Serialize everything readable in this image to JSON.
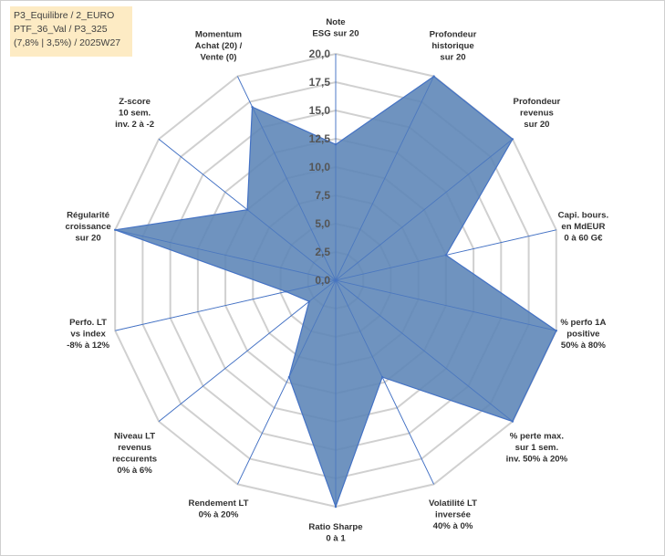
{
  "info_box": {
    "line1": "P3_Equilibre / 2_EURO",
    "line2": "PTF_36_Val / P3_325",
    "line3": "(7,8% | 3,5%) / 2025W27"
  },
  "colors": {
    "fill": "#5b84b6",
    "stroke": "#4472c4",
    "grid": "#d0d0d0",
    "spoke": "#4472c4"
  },
  "chart_data": {
    "type": "radar",
    "rmax": 20,
    "rmin": 0,
    "ticks": [
      "0,0",
      "2,5",
      "5,0",
      "7,5",
      "10,0",
      "12,5",
      "15,0",
      "17,5",
      "20,0"
    ],
    "axes": [
      {
        "label": [
          "Note",
          "ESG sur 20"
        ],
        "value": 12
      },
      {
        "label": [
          "Profondeur",
          "historique",
          "sur 20"
        ],
        "value": 20
      },
      {
        "label": [
          "Profondeur",
          "revenus",
          "sur 20"
        ],
        "value": 20
      },
      {
        "label": [
          "Capi. bours.",
          "en MdEUR",
          "0 à 60 G€"
        ],
        "value": 10
      },
      {
        "label": [
          "% perfo 1A",
          "positive",
          "50% à 80%"
        ],
        "value": 20
      },
      {
        "label": [
          "% perte max.",
          "sur 1 sem.",
          "inv. 50% à 20%"
        ],
        "value": 20
      },
      {
        "label": [
          "Volatilité LT",
          "inversée",
          "40% à 0%"
        ],
        "value": 9.5
      },
      {
        "label": [
          "Ratio Sharpe",
          "0 à 1"
        ],
        "value": 20
      },
      {
        "label": [
          "Rendement LT",
          "0% à 20%"
        ],
        "value": 9.5
      },
      {
        "label": [
          "Niveau LT",
          "revenus",
          "reccurents",
          "0% à 6%"
        ],
        "value": 3
      },
      {
        "label": [
          "Perfo. LT",
          "vs index",
          "-8% à 12%"
        ],
        "value": 4.5
      },
      {
        "label": [
          "Régularité",
          "croissance",
          "sur 20"
        ],
        "value": 20
      },
      {
        "label": [
          "Z-score",
          "10 sem.",
          "inv. 2 à -2"
        ],
        "value": 10
      },
      {
        "label": [
          "Momentum",
          "Achat (20) /",
          "Vente (0)"
        ],
        "value": 17
      }
    ]
  }
}
